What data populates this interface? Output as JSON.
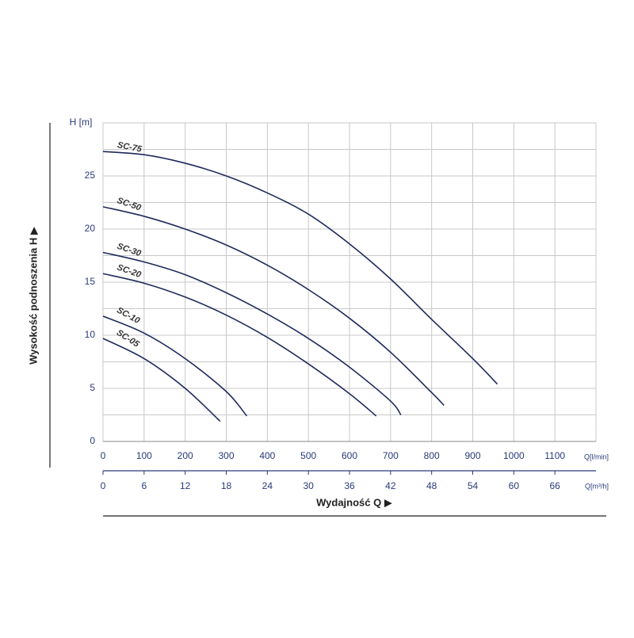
{
  "chart_data": {
    "type": "line",
    "y_axis_label": "Wysokość podnoszenia H ▶",
    "y_unit": "H [m]",
    "x_axis_label": "Wydajność Q ▶",
    "x_unit": "Q[l/min]",
    "x2_unit": "Q[m³/h]",
    "xlim": [
      0,
      1200
    ],
    "xticks": [
      0,
      100,
      200,
      300,
      400,
      500,
      600,
      700,
      800,
      900,
      1000,
      1100
    ],
    "xgrid": [
      0,
      100,
      200,
      300,
      400,
      500,
      600,
      700,
      800,
      900,
      1000,
      1100,
      1200
    ],
    "x2lim": [
      0,
      72
    ],
    "x2ticks": [
      0,
      6,
      12,
      18,
      24,
      30,
      36,
      42,
      48,
      54,
      60,
      66
    ],
    "ylim": [
      0,
      30
    ],
    "yticks": [
      0,
      5,
      10,
      15,
      20,
      25
    ],
    "ygrid": [
      0,
      2.5,
      5,
      7.5,
      10,
      12.5,
      15,
      17.5,
      20,
      22.5,
      25,
      27.5,
      30
    ],
    "grid": true,
    "series": [
      {
        "name": "SC-75",
        "color": "#1f2a5c",
        "x": [
          0,
          100,
          200,
          300,
          400,
          500,
          600,
          700,
          800,
          900,
          960
        ],
        "values": [
          27.3,
          27.0,
          26.2,
          25.0,
          23.4,
          21.4,
          18.6,
          15.3,
          11.5,
          7.8,
          5.4
        ]
      },
      {
        "name": "SC-50",
        "color": "#1f2a5c",
        "x": [
          0,
          100,
          200,
          300,
          400,
          500,
          600,
          700,
          800,
          830
        ],
        "values": [
          22.1,
          21.2,
          20.0,
          18.5,
          16.6,
          14.3,
          11.6,
          8.4,
          4.6,
          3.4
        ]
      },
      {
        "name": "SC-30",
        "color": "#1f2a5c",
        "x": [
          0,
          100,
          200,
          300,
          400,
          500,
          600,
          700,
          725
        ],
        "values": [
          17.8,
          16.9,
          15.7,
          14.0,
          12.0,
          9.7,
          7.0,
          3.8,
          2.5
        ]
      },
      {
        "name": "SC-20",
        "color": "#1f2a5c",
        "x": [
          0,
          100,
          200,
          300,
          400,
          500,
          600,
          665
        ],
        "values": [
          15.8,
          14.9,
          13.6,
          11.9,
          9.8,
          7.3,
          4.5,
          2.4
        ]
      },
      {
        "name": "SC-10",
        "color": "#1f2a5c",
        "x": [
          0,
          100,
          200,
          300,
          350
        ],
        "values": [
          11.8,
          10.2,
          7.8,
          4.7,
          2.4
        ]
      },
      {
        "name": "SC-05",
        "color": "#1f2a5c",
        "x": [
          0,
          100,
          200,
          285
        ],
        "values": [
          9.7,
          7.8,
          5.0,
          1.9
        ]
      }
    ]
  }
}
